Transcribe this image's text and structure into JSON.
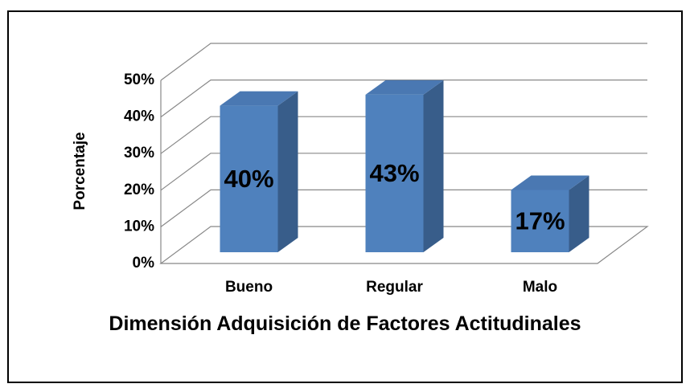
{
  "chart_data": {
    "type": "bar3d",
    "categories": [
      "Bueno",
      "Regular",
      "Malo"
    ],
    "values": [
      40,
      43,
      17
    ],
    "value_labels": [
      "40%",
      "43%",
      "17%"
    ],
    "color": "#4f81bd",
    "xlabel": "Dimensión Adquisición de Factores Actitudinales",
    "ylabel": "Porcentaje",
    "ylim": [
      0,
      50
    ],
    "yticks": [
      {
        "value": 0,
        "label": "0%"
      },
      {
        "value": 10,
        "label": "10%"
      },
      {
        "value": 20,
        "label": "20%"
      },
      {
        "value": 30,
        "label": "30%"
      },
      {
        "value": 40,
        "label": "40%"
      },
      {
        "value": 50,
        "label": "50%"
      }
    ],
    "grid": true
  }
}
